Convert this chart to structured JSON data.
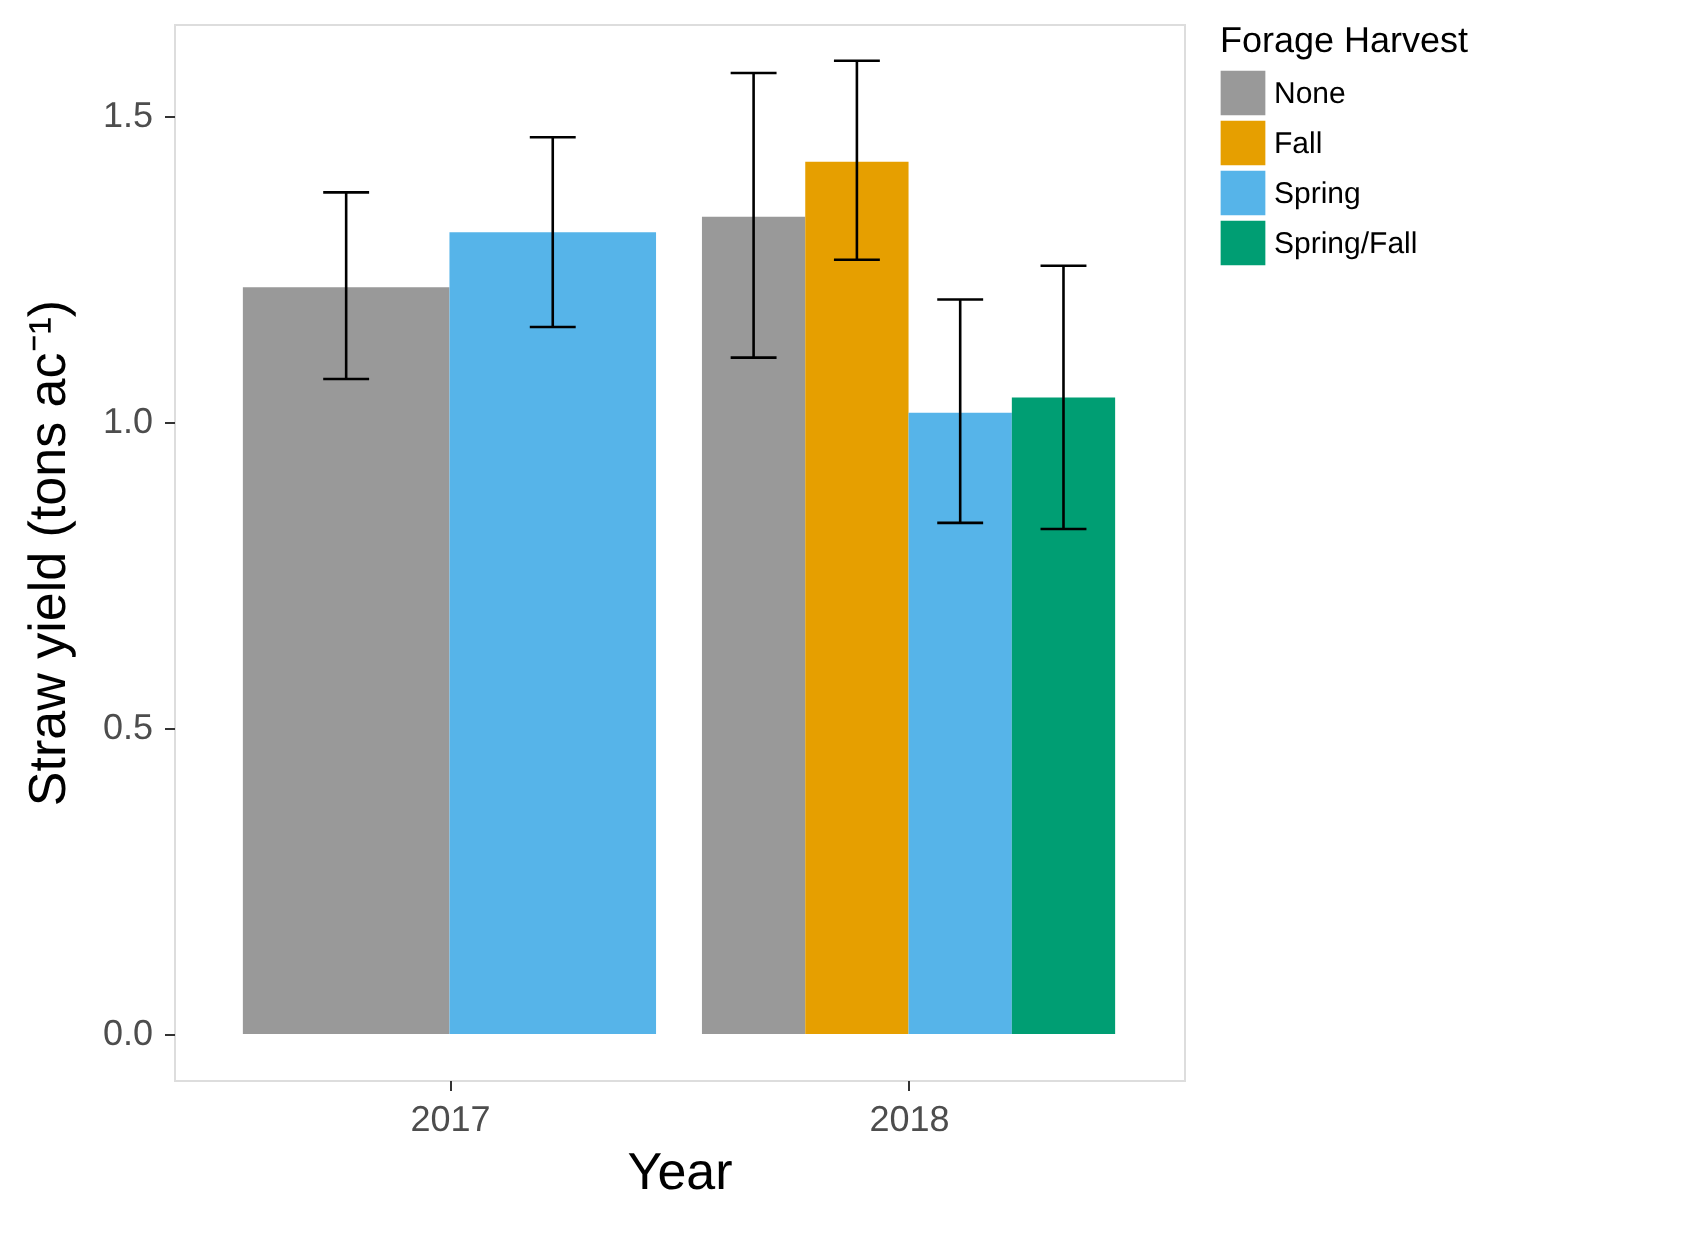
{
  "chart_data": {
    "type": "bar",
    "xlabel": "Year",
    "ylabel": "Straw yield (tons ac⁻¹)",
    "legend_title": "Forage Harvest",
    "categories": [
      "2017",
      "2018"
    ],
    "series": [
      {
        "name": "None",
        "color": "#999999",
        "values": [
          1.22,
          1.335
        ],
        "errors": [
          [
            1.07,
            1.375
          ],
          [
            1.105,
            1.57
          ]
        ]
      },
      {
        "name": "Fall",
        "color": "#e69f00",
        "values": [
          null,
          1.425
        ],
        "errors": [
          null,
          [
            1.265,
            1.59
          ]
        ]
      },
      {
        "name": "Spring",
        "color": "#56b4e9",
        "values": [
          1.31,
          1.015
        ],
        "errors": [
          [
            1.155,
            1.465
          ],
          [
            0.835,
            1.2
          ]
        ]
      },
      {
        "name": "Spring/Fall",
        "color": "#009e73",
        "values": [
          null,
          1.04
        ],
        "errors": [
          null,
          [
            0.825,
            1.255
          ]
        ]
      }
    ],
    "ylim": [
      -0.075,
      1.65
    ],
    "yticks": [
      {
        "value": 0,
        "label": "0.0"
      },
      {
        "value": 0.5,
        "label": "0.5"
      },
      {
        "value": 1,
        "label": "1.0"
      },
      {
        "value": 1.5,
        "label": "1.5"
      }
    ],
    "grid": false,
    "legend": "right"
  }
}
